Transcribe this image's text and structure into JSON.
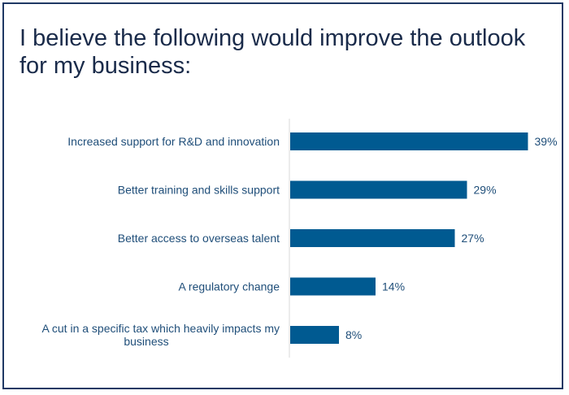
{
  "chart_data": {
    "type": "bar",
    "orientation": "horizontal",
    "title": "I believe the following would improve the outlook for my business:",
    "categories": [
      [
        "Increased support for R&D and innovation"
      ],
      [
        "Better training and skills support"
      ],
      [
        "Better access to overseas talent"
      ],
      [
        "A regulatory change"
      ],
      [
        "A cut in a specific tax which heavily impacts my",
        "business"
      ]
    ],
    "values": [
      39,
      29,
      27,
      14,
      8
    ],
    "value_labels": [
      "39%",
      "29%",
      "27%",
      "14%",
      "8%"
    ],
    "unit": "%",
    "xlim": [
      0,
      40
    ],
    "grid": false,
    "legend": "none",
    "bar_color": "#005a91",
    "axis_color": "#d9d9d9",
    "label_color": "#1f4e79",
    "frame_color": "#1f3864"
  }
}
